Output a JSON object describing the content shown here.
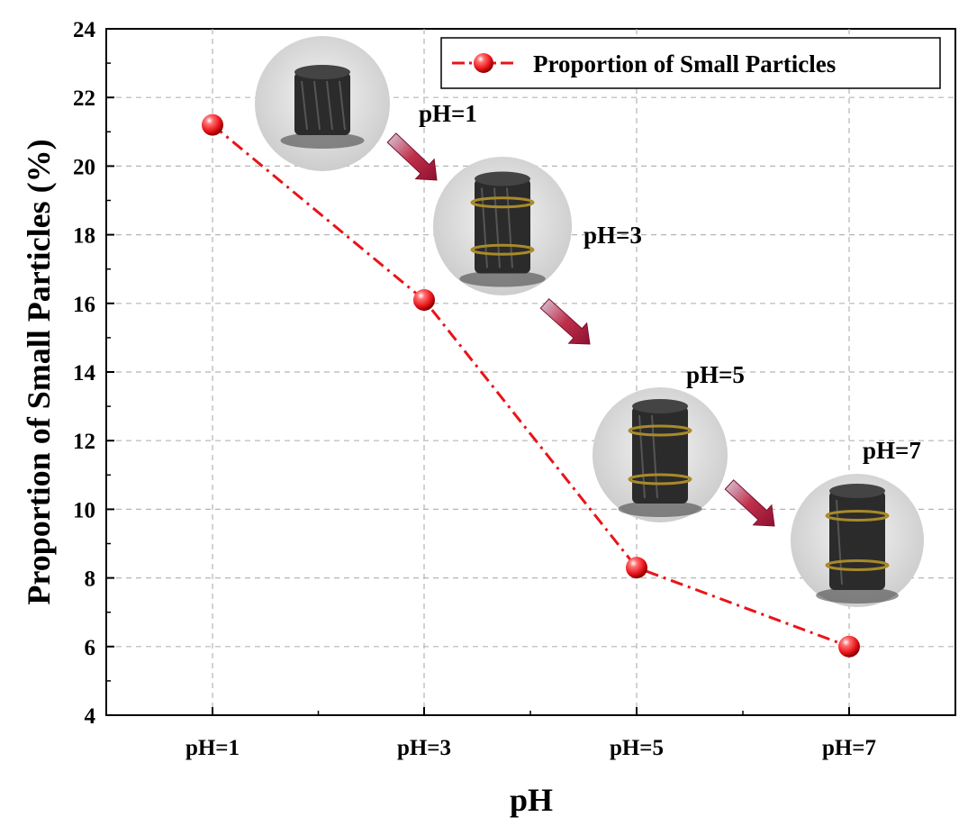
{
  "chart_data": {
    "type": "line",
    "title": "",
    "xlabel": "pH",
    "ylabel": "Proportion of Small Particles (%)",
    "categories": [
      "pH=1",
      "pH=3",
      "pH=5",
      "pH=7"
    ],
    "series": [
      {
        "name": "Proportion of Small Particles",
        "values": [
          21.2,
          16.1,
          8.3,
          6.0
        ],
        "color": "#e8141a",
        "line_style": "dash-dot",
        "marker": "sphere"
      }
    ],
    "ylim": [
      4,
      24
    ],
    "yticks": [
      "4",
      "6",
      "8",
      "10",
      "12",
      "14",
      "16",
      "18",
      "20",
      "22",
      "24"
    ],
    "grid": true,
    "legend": "top-right",
    "annotations": [
      "pH=1",
      "pH=3",
      "pH=5",
      "pH=7"
    ],
    "inset_photos": [
      "coal-sample-ph1-photo",
      "coal-sample-ph3-photo",
      "coal-sample-ph5-photo",
      "coal-sample-ph7-photo"
    ],
    "arrow_color": "#c0304a"
  }
}
